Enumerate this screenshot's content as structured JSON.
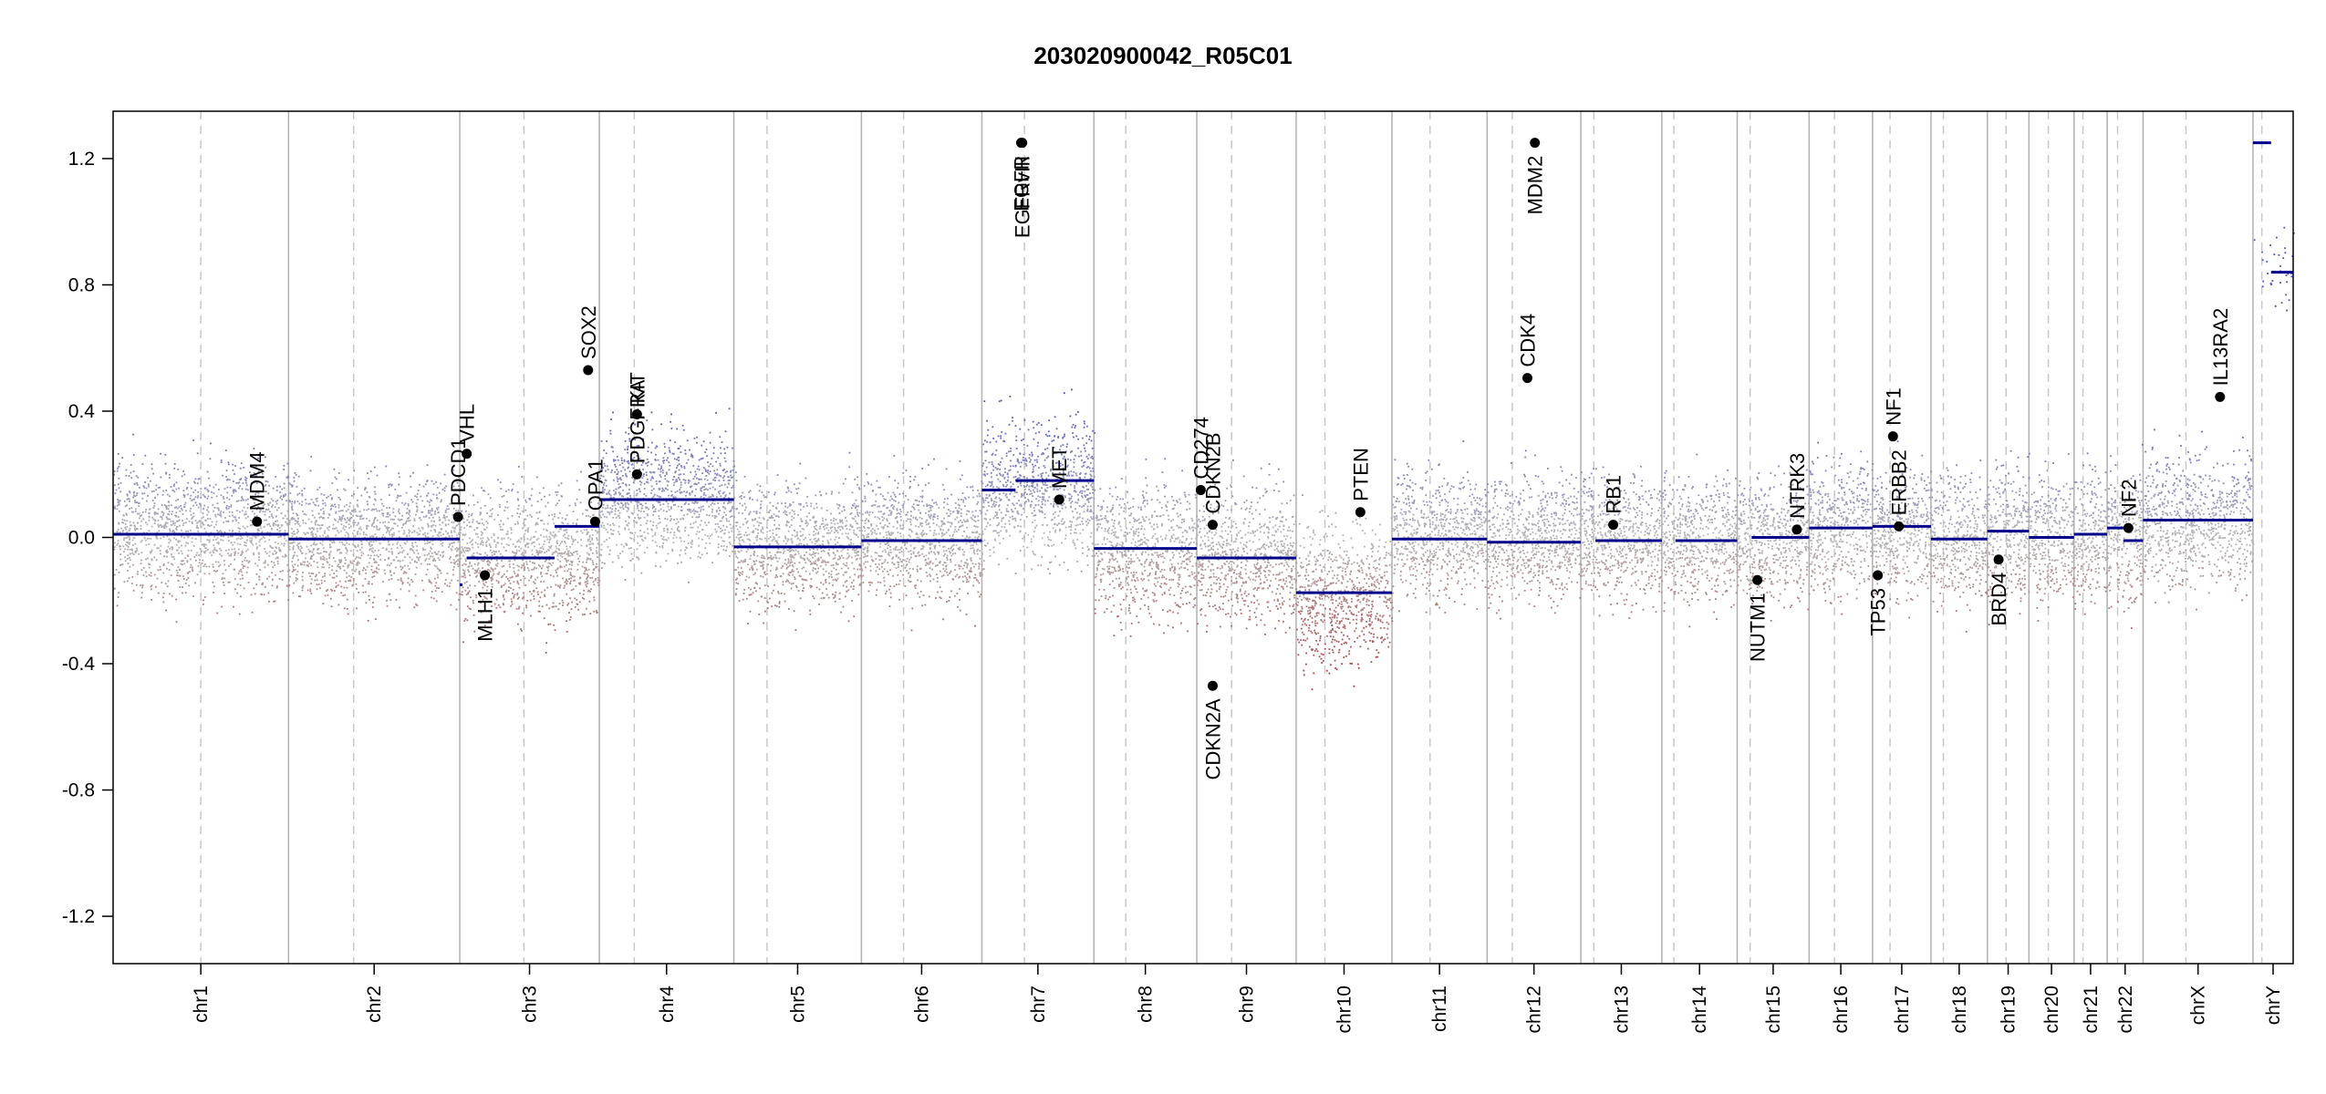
{
  "chart_data": {
    "type": "scatter",
    "title": "203020900042_R05C01",
    "xlabel": "",
    "ylabel": "",
    "ylim": [
      -1.35,
      1.35
    ],
    "yticks": [
      -1.2,
      -0.8,
      -0.4,
      0.0,
      0.4,
      0.8,
      1.2
    ],
    "ytick_labels": [
      "-1.2",
      "-0.8",
      "-0.4",
      "0.0",
      "0.4",
      "0.8",
      "1.2"
    ],
    "grid": false,
    "colors": {
      "gain": "#4a4fc4",
      "loss": "#a83a3a",
      "neutral": "#b5b5b5",
      "segment": "#00008b",
      "dividers": "#b0b0b0"
    },
    "chromosomes": [
      {
        "name": "chr1",
        "length": 249,
        "centromere": 0.5
      },
      {
        "name": "chr2",
        "length": 243,
        "centromere": 0.38
      },
      {
        "name": "chr3",
        "length": 198,
        "centromere": 0.46
      },
      {
        "name": "chr4",
        "length": 191,
        "centromere": 0.26
      },
      {
        "name": "chr5",
        "length": 181,
        "centromere": 0.26
      },
      {
        "name": "chr6",
        "length": 171,
        "centromere": 0.35
      },
      {
        "name": "chr7",
        "length": 159,
        "centromere": 0.38
      },
      {
        "name": "chr8",
        "length": 146,
        "centromere": 0.31
      },
      {
        "name": "chr9",
        "length": 141,
        "centromere": 0.35
      },
      {
        "name": "chr10",
        "length": 136,
        "centromere": 0.3
      },
      {
        "name": "chr11",
        "length": 135,
        "centromere": 0.4
      },
      {
        "name": "chr12",
        "length": 133,
        "centromere": 0.27
      },
      {
        "name": "chr13",
        "length": 115,
        "centromere": 0.16
      },
      {
        "name": "chr14",
        "length": 107,
        "centromere": 0.16
      },
      {
        "name": "chr15",
        "length": 102,
        "centromere": 0.18
      },
      {
        "name": "chr16",
        "length": 90,
        "centromere": 0.4
      },
      {
        "name": "chr17",
        "length": 83,
        "centromere": 0.3
      },
      {
        "name": "chr18",
        "length": 80,
        "centromere": 0.22
      },
      {
        "name": "chr19",
        "length": 59,
        "centromere": 0.45
      },
      {
        "name": "chr20",
        "length": 64,
        "centromere": 0.43
      },
      {
        "name": "chr21",
        "length": 47,
        "centromere": 0.27
      },
      {
        "name": "chr22",
        "length": 51,
        "centromere": 0.29
      },
      {
        "name": "chrX",
        "length": 156,
        "centromere": 0.39
      },
      {
        "name": "chrY",
        "length": 57,
        "centromere": 0.22
      }
    ],
    "segments": [
      {
        "chr": "chr1",
        "start": 0.0,
        "end": 1.0,
        "value": 0.01
      },
      {
        "chr": "chr2",
        "start": 0.0,
        "end": 1.0,
        "value": -0.005
      },
      {
        "chr": "chr3",
        "start": 0.0,
        "end": 0.02,
        "value": -0.15
      },
      {
        "chr": "chr3",
        "start": 0.05,
        "end": 0.68,
        "value": -0.065
      },
      {
        "chr": "chr3",
        "start": 0.68,
        "end": 1.0,
        "value": 0.035
      },
      {
        "chr": "chr4",
        "start": 0.0,
        "end": 1.0,
        "value": 0.12
      },
      {
        "chr": "chr5",
        "start": 0.0,
        "end": 1.0,
        "value": -0.03
      },
      {
        "chr": "chr6",
        "start": 0.0,
        "end": 1.0,
        "value": -0.01
      },
      {
        "chr": "chr7",
        "start": 0.0,
        "end": 0.3,
        "value": 0.15
      },
      {
        "chr": "chr7",
        "start": 0.3,
        "end": 1.0,
        "value": 0.18
      },
      {
        "chr": "chr8",
        "start": 0.0,
        "end": 1.0,
        "value": -0.035
      },
      {
        "chr": "chr9",
        "start": 0.0,
        "end": 1.0,
        "value": -0.065
      },
      {
        "chr": "chr10",
        "start": 0.0,
        "end": 1.0,
        "value": -0.175
      },
      {
        "chr": "chr11",
        "start": 0.0,
        "end": 1.0,
        "value": -0.005
      },
      {
        "chr": "chr12",
        "start": 0.0,
        "end": 1.0,
        "value": -0.015
      },
      {
        "chr": "chr13",
        "start": 0.18,
        "end": 1.0,
        "value": -0.01
      },
      {
        "chr": "chr14",
        "start": 0.18,
        "end": 1.0,
        "value": -0.01
      },
      {
        "chr": "chr15",
        "start": 0.2,
        "end": 1.0,
        "value": 0.0
      },
      {
        "chr": "chr16",
        "start": 0.0,
        "end": 1.0,
        "value": 0.03
      },
      {
        "chr": "chr17",
        "start": 0.0,
        "end": 1.0,
        "value": 0.035
      },
      {
        "chr": "chr18",
        "start": 0.0,
        "end": 1.0,
        "value": -0.005
      },
      {
        "chr": "chr19",
        "start": 0.0,
        "end": 1.0,
        "value": 0.02
      },
      {
        "chr": "chr20",
        "start": 0.0,
        "end": 1.0,
        "value": 0.0
      },
      {
        "chr": "chr21",
        "start": 0.0,
        "end": 1.0,
        "value": 0.01
      },
      {
        "chr": "chr22",
        "start": 0.0,
        "end": 0.45,
        "value": 0.03
      },
      {
        "chr": "chr22",
        "start": 0.45,
        "end": 1.0,
        "value": -0.01
      },
      {
        "chr": "chrX",
        "start": 0.0,
        "end": 1.0,
        "value": 0.055
      },
      {
        "chr": "chrY",
        "start": 0.0,
        "end": 0.45,
        "value": 1.25
      },
      {
        "chr": "chrY",
        "start": 0.45,
        "end": 1.0,
        "value": 0.84
      }
    ],
    "noise": [
      {
        "chr": "chr1",
        "spread": 0.19,
        "bias": 0.03
      },
      {
        "chr": "chr2",
        "spread": 0.18,
        "bias": 0.0
      },
      {
        "chr": "chr3",
        "spread": 0.19,
        "bias": -0.05
      },
      {
        "chr": "chr4",
        "spread": 0.18,
        "bias": 0.13
      },
      {
        "chr": "chr5",
        "spread": 0.18,
        "bias": -0.02
      },
      {
        "chr": "chr6",
        "spread": 0.17,
        "bias": 0.0
      },
      {
        "chr": "chr7",
        "spread": 0.2,
        "bias": 0.16
      },
      {
        "chr": "chr8",
        "spread": 0.19,
        "bias": -0.04
      },
      {
        "chr": "chr9",
        "spread": 0.19,
        "bias": -0.06
      },
      {
        "chr": "chr10",
        "spread": 0.2,
        "bias": -0.18
      },
      {
        "chr": "chr11",
        "spread": 0.18,
        "bias": 0.01
      },
      {
        "chr": "chr12",
        "spread": 0.18,
        "bias": 0.0
      },
      {
        "chr": "chr13",
        "spread": 0.18,
        "bias": 0.0
      },
      {
        "chr": "chr14",
        "spread": 0.18,
        "bias": 0.0
      },
      {
        "chr": "chr15",
        "spread": 0.18,
        "bias": 0.0
      },
      {
        "chr": "chr16",
        "spread": 0.19,
        "bias": 0.03
      },
      {
        "chr": "chr17",
        "spread": 0.19,
        "bias": 0.03
      },
      {
        "chr": "chr18",
        "spread": 0.18,
        "bias": 0.0
      },
      {
        "chr": "chr19",
        "spread": 0.2,
        "bias": 0.02
      },
      {
        "chr": "chr20",
        "spread": 0.18,
        "bias": 0.0
      },
      {
        "chr": "chr21",
        "spread": 0.18,
        "bias": 0.0
      },
      {
        "chr": "chr22",
        "spread": 0.19,
        "bias": 0.0
      },
      {
        "chr": "chrX",
        "spread": 0.19,
        "bias": 0.06
      },
      {
        "chr": "chrY",
        "spread": 0.15,
        "bias": 0.85
      }
    ],
    "genes": [
      {
        "name": "MDM4",
        "chr": "chr1",
        "pos": 0.82,
        "value": 0.05,
        "label_side": "above"
      },
      {
        "name": "PDCD1",
        "chr": "chr2",
        "pos": 0.99,
        "value": 0.065,
        "label_side": "above"
      },
      {
        "name": "VHL",
        "chr": "chr3",
        "pos": 0.05,
        "value": 0.265,
        "label_side": "above"
      },
      {
        "name": "MLH1",
        "chr": "chr3",
        "pos": 0.18,
        "value": -0.12,
        "label_side": "below"
      },
      {
        "name": "SOX2",
        "chr": "chr3",
        "pos": 0.92,
        "value": 0.53,
        "label_side": "above"
      },
      {
        "name": "OPA1",
        "chr": "chr3",
        "pos": 0.97,
        "value": 0.05,
        "label_side": "above"
      },
      {
        "name": "KIT",
        "chr": "chr4",
        "pos": 0.28,
        "value": 0.39,
        "label_side": "above"
      },
      {
        "name": "PDGFRA",
        "chr": "chr4",
        "pos": 0.28,
        "value": 0.2,
        "label_side": "above"
      },
      {
        "name": "EGFR",
        "chr": "chr7",
        "pos": 0.35,
        "value": 1.25,
        "label_side": "below"
      },
      {
        "name": "EGFRvIII",
        "chr": "chr7",
        "pos": 0.36,
        "value": 1.25,
        "label_side": "below"
      },
      {
        "name": "MET",
        "chr": "chr7",
        "pos": 0.69,
        "value": 0.12,
        "label_side": "above"
      },
      {
        "name": "CD274",
        "chr": "chr9",
        "pos": 0.04,
        "value": 0.15,
        "label_side": "above"
      },
      {
        "name": "CDKN2B",
        "chr": "chr9",
        "pos": 0.16,
        "value": 0.04,
        "label_side": "above"
      },
      {
        "name": "CDKN2A",
        "chr": "chr9",
        "pos": 0.16,
        "value": -0.47,
        "label_side": "below"
      },
      {
        "name": "PTEN",
        "chr": "chr10",
        "pos": 0.67,
        "value": 0.08,
        "label_side": "above"
      },
      {
        "name": "CDK4",
        "chr": "chr12",
        "pos": 0.43,
        "value": 0.505,
        "label_side": "above"
      },
      {
        "name": "MDM2",
        "chr": "chr12",
        "pos": 0.51,
        "value": 1.25,
        "label_side": "below"
      },
      {
        "name": "RB1",
        "chr": "chr13",
        "pos": 0.4,
        "value": 0.04,
        "label_side": "above"
      },
      {
        "name": "NUTM1",
        "chr": "chr15",
        "pos": 0.28,
        "value": -0.135,
        "label_side": "below"
      },
      {
        "name": "NTRK3",
        "chr": "chr15",
        "pos": 0.83,
        "value": 0.025,
        "label_side": "above"
      },
      {
        "name": "TP53",
        "chr": "chr17",
        "pos": 0.09,
        "value": -0.12,
        "label_side": "below"
      },
      {
        "name": "ERBB2",
        "chr": "chr17",
        "pos": 0.45,
        "value": 0.035,
        "label_side": "above"
      },
      {
        "name": "NF1",
        "chr": "chr17",
        "pos": 0.35,
        "value": 0.32,
        "label_side": "above"
      },
      {
        "name": "BRD4",
        "chr": "chr19",
        "pos": 0.27,
        "value": -0.07,
        "label_side": "below"
      },
      {
        "name": "NF2",
        "chr": "chr22",
        "pos": 0.59,
        "value": 0.03,
        "label_side": "above"
      },
      {
        "name": "IL13RA2",
        "chr": "chrX",
        "pos": 0.7,
        "value": 0.445,
        "label_side": "above"
      }
    ]
  }
}
